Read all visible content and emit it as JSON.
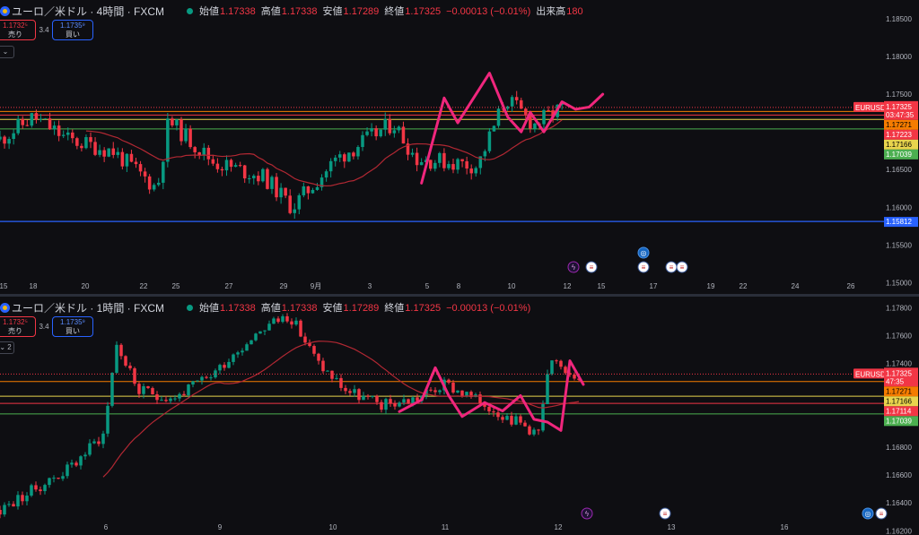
{
  "top": {
    "title": "ユーロ／米ドル · 4時間 · FXCM",
    "ohlc": [
      {
        "k": "始値",
        "v": "1.17338",
        "cls": "dn"
      },
      {
        "k": "高値",
        "v": "1.17338",
        "cls": "dn"
      },
      {
        "k": "安値",
        "v": "1.17289",
        "cls": "dn"
      },
      {
        "k": "終値",
        "v": "1.17325",
        "cls": "dn"
      },
      {
        "k": "",
        "v": "−0.00013 (−0.01%)",
        "cls": "dn"
      },
      {
        "k": "出来高",
        "v": "180",
        "cls": "dn"
      }
    ],
    "sell_price": "1.1732⁵",
    "sell_label": "売り",
    "spread": "3.4",
    "buy_price": "1.1735⁹",
    "buy_label": "買い",
    "collapse": "⌄"
  },
  "bottom": {
    "title": "ユーロ／米ドル · 1時間 · FXCM",
    "ohlc": [
      {
        "k": "始値",
        "v": "1.17338",
        "cls": "dn"
      },
      {
        "k": "高値",
        "v": "1.17338",
        "cls": "dn"
      },
      {
        "k": "安値",
        "v": "1.17289",
        "cls": "dn"
      },
      {
        "k": "終値",
        "v": "1.17325",
        "cls": "dn"
      },
      {
        "k": "",
        "v": "−0.00013 (−0.01%)",
        "cls": "dn"
      }
    ],
    "sell_price": "1.1732⁵",
    "sell_label": "売り",
    "spread": "3.4",
    "buy_price": "1.1735⁹",
    "buy_label": "買い",
    "collapse": "⌄ 2"
  },
  "colors": {
    "up": "#089981",
    "down": "#f23645",
    "ma": "#b22833",
    "drawing": "#f0267d",
    "orange_line": "#f57c00",
    "yellow_line": "#e8d44d",
    "green_line": "#4caf50",
    "blue_line": "#2962ff"
  },
  "chart_data": [
    {
      "type": "candlestick",
      "interval": "4時間",
      "yaxis_ticks": [
        "1.18500",
        "1.18000",
        "1.17500",
        "1.17000",
        "1.16500",
        "1.16000",
        "1.15500",
        "1.15000"
      ],
      "xaxis_ticks": [
        "15",
        "18",
        "20",
        "22",
        "25",
        "27",
        "29",
        "9月",
        "3",
        "5",
        "8",
        "10",
        "12",
        "15",
        "17",
        "19",
        "22",
        "24",
        "26"
      ],
      "ylim": [
        1.1485,
        1.1875
      ],
      "last_price": {
        "label": "EURUSD",
        "value": "1.17325",
        "countdown": "03:47:35"
      },
      "levels": [
        {
          "value": 1.17271,
          "label": "1.17271",
          "color": "orange"
        },
        {
          "value": 1.17223,
          "label": "1.17223",
          "color": "red"
        },
        {
          "value": 1.17166,
          "label": "1.17166",
          "color": "yellow"
        },
        {
          "value": 1.17039,
          "label": "1.17039",
          "color": "green"
        },
        {
          "value": 1.15812,
          "label": "1.15812",
          "color": "blue"
        }
      ],
      "events": [
        {
          "x_tick": "12",
          "icon": "lightning-icon"
        },
        {
          "x_tick": "12",
          "icon": "us-flag-icon"
        },
        {
          "x_tick": "17",
          "icon": "globe-icon"
        },
        {
          "x_tick": "17",
          "icon": "us-flag-icon"
        },
        {
          "x_tick": "17",
          "icon": "us-flag-icon"
        },
        {
          "x_tick": "17",
          "icon": "us-flag-icon"
        }
      ]
    },
    {
      "type": "candlestick",
      "interval": "1時間",
      "yaxis_ticks": [
        "1.17800",
        "1.17600",
        "1.17400",
        "1.17200",
        "1.17000",
        "1.16800",
        "1.16600",
        "1.16400",
        "1.16200"
      ],
      "xaxis_ticks": [
        "6",
        "9",
        "10",
        "11",
        "12",
        "13",
        "16"
      ],
      "ylim": [
        1.1617,
        1.1788
      ],
      "last_price": {
        "label": "EURUSD",
        "value": "1.17325",
        "countdown": "47:35"
      },
      "levels": [
        {
          "value": 1.17271,
          "label": "1.17271",
          "color": "orange"
        },
        {
          "value": 1.17166,
          "label": "1.17166",
          "color": "yellow"
        },
        {
          "value": 1.17114,
          "label": "1.17114",
          "color": "red"
        },
        {
          "value": 1.17039,
          "label": "1.17039",
          "color": "green"
        }
      ],
      "events": [
        {
          "x_tick": "12",
          "icon": "lightning-icon"
        },
        {
          "x_tick": "13",
          "icon": "us-flag-icon"
        },
        {
          "x_tick": "16",
          "icon": "globe-icon"
        },
        {
          "x_tick": "16",
          "icon": "us-flag-icon"
        }
      ]
    }
  ]
}
